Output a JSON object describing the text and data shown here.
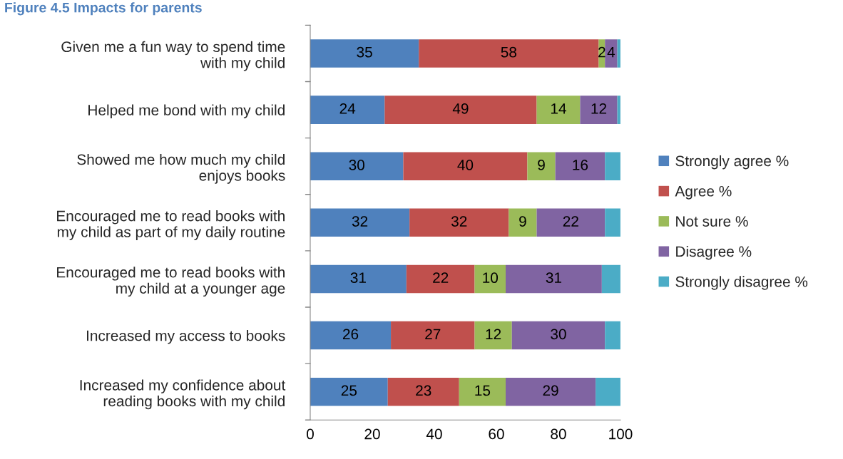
{
  "chart_data": {
    "type": "bar",
    "orientation": "horizontal",
    "stacked": true,
    "title": "Figure 4.5 Impacts for parents",
    "categories": [
      "Given me a fun way to spend time\nwith my child",
      "Helped me bond with my child",
      "Showed me how much my child\nenjoys books",
      "Encouraged me to read books with\nmy child as part of my daily routine",
      "Encouraged me to read books with\nmy child at a younger age",
      "Increased my access to books",
      "Increased my confidence about\nreading books with my child"
    ],
    "series": [
      {
        "name": "Strongly agree %",
        "color": "#4f81bd",
        "values": [
          35,
          24,
          30,
          32,
          31,
          26,
          25
        ],
        "value_labels": [
          "35",
          "24",
          "30",
          "32",
          "31",
          "26",
          "25"
        ]
      },
      {
        "name": "Agree %",
        "color": "#c0504d",
        "values": [
          58,
          49,
          40,
          32,
          22,
          27,
          23
        ],
        "value_labels": [
          "58",
          "49",
          "40",
          "32",
          "22",
          "27",
          "23"
        ]
      },
      {
        "name": "Not sure %",
        "color": "#9bbb59",
        "values": [
          2,
          14,
          9,
          9,
          10,
          12,
          15
        ],
        "value_labels": [
          "2",
          "14",
          "9",
          "9",
          "10",
          "12",
          "15"
        ]
      },
      {
        "name": "Disagree %",
        "color": "#8064a2",
        "values": [
          4,
          12,
          16,
          22,
          31,
          30,
          29
        ],
        "value_labels": [
          "4",
          "12",
          "16",
          "22",
          "31",
          "30",
          "29"
        ]
      },
      {
        "name": "Strongly disagree %",
        "color": "#4bacc6",
        "values": [
          1,
          1,
          5,
          5,
          6,
          5,
          8
        ]
      }
    ],
    "xlim": [
      0,
      100
    ],
    "xticks": [
      0,
      20,
      40,
      60,
      80,
      100
    ],
    "legend": "right",
    "grid": false
  }
}
